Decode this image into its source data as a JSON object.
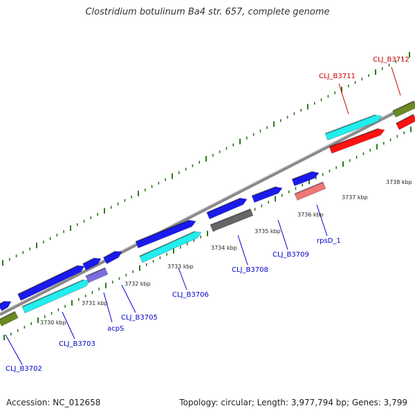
{
  "title": "Clostridium botulinum Ba4 str. 657, complete genome",
  "footer": {
    "accession": "Accession: NC_012658",
    "topology": "Topology: circular; Length: 3,977,794 bp; Genes: 3,799"
  },
  "colors": {
    "cds_blue": "#1a1aee",
    "cds_cyan": "#22eeee",
    "cds_red": "#ff1111",
    "cds_gray": "#666666",
    "cds_pink": "#ee7777",
    "cds_lavender": "#7a6ee0",
    "cds_olive": "#6a8a22",
    "backbone": "#888888",
    "tick_green": "#2a7a1a",
    "label_blue": "#0000cc",
    "label_red": "#cc0000"
  },
  "ticks": [
    {
      "label": "3730 kbp"
    },
    {
      "label": "3731 kbp"
    },
    {
      "label": "3732 kbp"
    },
    {
      "label": "3733 kbp"
    },
    {
      "label": "3734 kbp"
    },
    {
      "label": "3735 kbp"
    },
    {
      "label": "3736 kbp"
    },
    {
      "label": "3737 kbp"
    },
    {
      "label": "3738 kbp"
    }
  ],
  "gene_labels": [
    {
      "name": "CLJ_B3702",
      "color": "blue"
    },
    {
      "name": "CLJ_B3703",
      "color": "blue"
    },
    {
      "name": "acpS",
      "color": "blue"
    },
    {
      "name": "CLJ_B3705",
      "color": "blue"
    },
    {
      "name": "CLJ_B3706",
      "color": "blue"
    },
    {
      "name": "CLJ_B3708",
      "color": "blue"
    },
    {
      "name": "CLJ_B3709",
      "color": "blue"
    },
    {
      "name": "rpsD_1",
      "color": "blue"
    },
    {
      "name": "CLJ_B3711",
      "color": "red"
    },
    {
      "name": "CLJ_B3712",
      "color": "red"
    }
  ]
}
